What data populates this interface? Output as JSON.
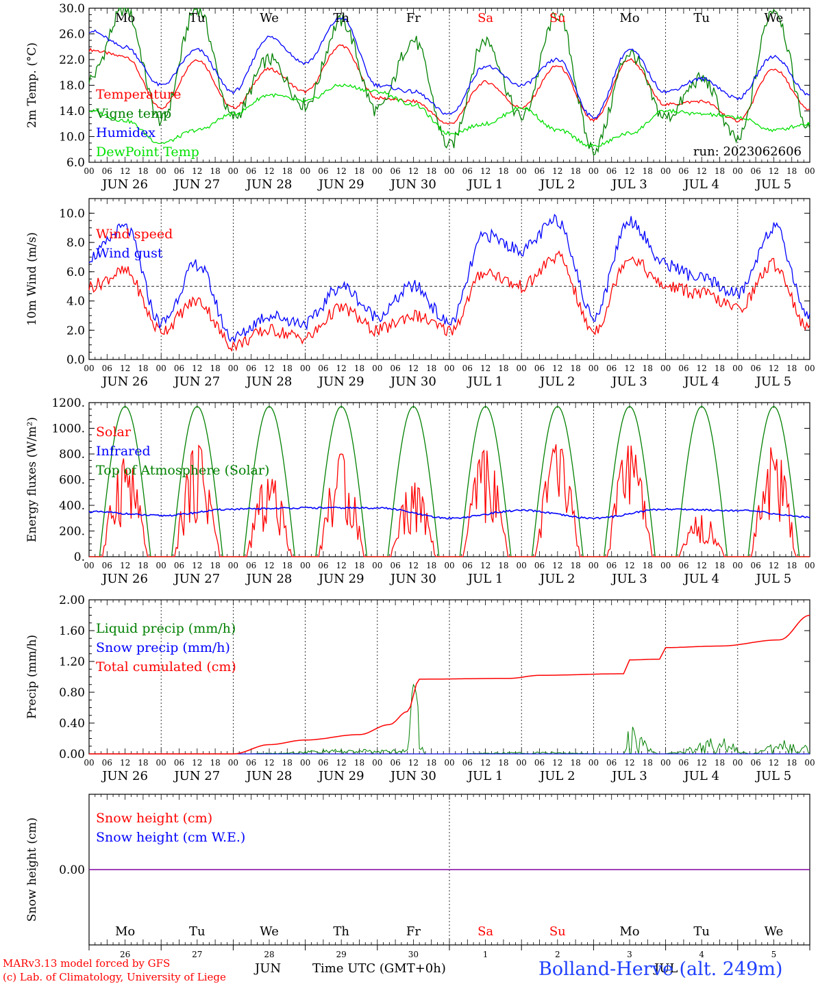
{
  "colors": {
    "red": "#ff0000",
    "green": "#008000",
    "lightgreen": "#00e000",
    "blue": "#0000ff",
    "purple": "#8000a0"
  },
  "footer": {
    "model": "MARv3.13 model forced by GFS",
    "copyright": "(c) Lab. of Climatology, University of Liege",
    "station": "Bolland-Herve (alt. 249m)",
    "xaxis_title": "Time UTC (GMT+0h)",
    "month_left": "JUN",
    "month_right": "JUL"
  },
  "chart_data": [
    {
      "type": "line",
      "ylabel": "2m Temp. (°C)",
      "ylim": [
        6,
        30
      ],
      "yticks": [
        "30.0",
        "26.0",
        "22.0",
        "18.0",
        "14.0",
        "10.0",
        "6.0"
      ],
      "annotation": "run: 2023062606",
      "day_labels": [
        "Mo",
        "Tu",
        "We",
        "Th",
        "Fr",
        "Sa",
        "Su",
        "Mo",
        "Tu",
        "We"
      ],
      "hour_ticks": [
        "00",
        "06",
        "12",
        "18"
      ],
      "date_labels": [
        "JUN 26",
        "JUN 27",
        "JUN 28",
        "JUN 29",
        "JUN 30",
        "JUL  1",
        "JUL  2",
        "JUL  3",
        "JUL  4",
        "JUL  5"
      ],
      "series": [
        {
          "name": "Temperature",
          "color": "#ff0000",
          "x_hours": [
            0,
            12,
            24,
            36,
            48,
            60,
            72,
            84,
            96,
            108,
            120,
            132,
            144,
            156,
            168,
            180,
            192,
            204,
            216,
            228,
            240
          ],
          "values": [
            23.5,
            22.5,
            14.5,
            22.0,
            14.5,
            20.5,
            17.0,
            24.2,
            16.0,
            15.5,
            12.0,
            18.5,
            14.5,
            21.0,
            12.5,
            22.0,
            15.0,
            15.5,
            12.5,
            20.5,
            14.2
          ]
        },
        {
          "name": "Vigne temp",
          "color": "#008000",
          "x_hours": [
            0,
            12,
            24,
            36,
            48,
            60,
            72,
            84,
            96,
            108,
            120,
            132,
            144,
            156,
            168,
            180,
            192,
            204,
            216,
            228,
            240
          ],
          "values": [
            19.0,
            30.0,
            12.5,
            30.0,
            13.0,
            22.0,
            15.0,
            28.0,
            14.0,
            25.0,
            8.5,
            25.0,
            13.0,
            29.0,
            8.0,
            23.0,
            13.0,
            19.0,
            9.5,
            30.0,
            11.0
          ]
        },
        {
          "name": "Humidex",
          "color": "#0000ff",
          "x_hours": [
            0,
            12,
            24,
            36,
            48,
            60,
            72,
            84,
            96,
            108,
            120,
            132,
            144,
            156,
            168,
            180,
            192,
            204,
            216,
            228,
            240
          ],
          "values": [
            26.5,
            24.0,
            18.0,
            23.5,
            17.0,
            25.5,
            21.5,
            28.5,
            18.0,
            17.0,
            13.5,
            21.0,
            18.0,
            22.0,
            13.0,
            23.5,
            17.0,
            19.0,
            16.0,
            22.5,
            16.5
          ]
        },
        {
          "name": "DewPoint Temp",
          "color": "#00e000",
          "x_hours": [
            0,
            12,
            24,
            36,
            48,
            60,
            72,
            84,
            96,
            108,
            120,
            132,
            144,
            156,
            168,
            180,
            192,
            204,
            216,
            228,
            240
          ],
          "values": [
            14.0,
            12.5,
            9.0,
            11.0,
            13.5,
            16.5,
            15.5,
            18.0,
            17.0,
            15.0,
            10.5,
            12.0,
            14.5,
            11.0,
            8.5,
            10.5,
            14.0,
            13.5,
            13.0,
            11.0,
            12.0
          ]
        }
      ]
    },
    {
      "type": "line",
      "ylabel": "10m Wind (m/s)",
      "ylim": [
        0,
        11
      ],
      "yticks": [
        "10.0",
        "8.0",
        "6.0",
        "4.0",
        "2.0",
        "0.0"
      ],
      "hline": 5,
      "date_labels": [
        "JUN 26",
        "JUN 27",
        "JUN 28",
        "JUN 29",
        "JUN 30",
        "JUL  1",
        "JUL  2",
        "JUL  3",
        "JUL  4",
        "JUL  5"
      ],
      "hour_ticks": [
        "00",
        "06",
        "12",
        "18"
      ],
      "series": [
        {
          "name": "Wind speed",
          "color": "#ff0000",
          "x_hours": [
            0,
            12,
            24,
            36,
            48,
            60,
            72,
            84,
            96,
            108,
            120,
            132,
            144,
            156,
            168,
            180,
            192,
            204,
            216,
            228,
            240
          ],
          "values": [
            5.0,
            6.0,
            2.0,
            4.0,
            1.0,
            2.0,
            1.5,
            3.5,
            2.0,
            3.0,
            2.0,
            6.0,
            5.0,
            7.0,
            2.0,
            7.0,
            5.0,
            4.5,
            3.5,
            6.5,
            2.0
          ]
        },
        {
          "name": "Wind gust",
          "color": "#0000ff",
          "x_hours": [
            0,
            12,
            24,
            36,
            48,
            60,
            72,
            84,
            96,
            108,
            120,
            132,
            144,
            156,
            168,
            180,
            192,
            204,
            216,
            228,
            240
          ],
          "values": [
            7.0,
            9.0,
            2.5,
            6.5,
            1.5,
            3.0,
            2.5,
            5.0,
            3.0,
            5.0,
            2.5,
            8.5,
            7.5,
            9.5,
            3.0,
            9.5,
            6.5,
            5.5,
            4.5,
            9.0,
            3.0
          ]
        }
      ]
    },
    {
      "type": "line",
      "ylabel": "Energy fluxes (W/m²)",
      "ylim": [
        0,
        1200
      ],
      "yticks": [
        "1200.",
        "1000.",
        "800.",
        "600.",
        "400.",
        "200.",
        "0."
      ],
      "date_labels": [
        "JUN 26",
        "JUN 27",
        "JUN 28",
        "JUN 29",
        "JUN 30",
        "JUL  1",
        "JUL  2",
        "JUL  3",
        "JUL  4",
        "JUL  5"
      ],
      "hour_ticks": [
        "00",
        "06",
        "12",
        "18"
      ],
      "series": [
        {
          "name": "Solar",
          "color": "#ff0000",
          "daily_peak": [
            800,
            870,
            650,
            800,
            580,
            830,
            880,
            870,
            340,
            870
          ]
        },
        {
          "name": "Infrared",
          "color": "#0000ff",
          "x_hours": [
            0,
            24,
            48,
            72,
            96,
            120,
            144,
            168,
            192,
            216,
            240
          ],
          "values": [
            350,
            320,
            370,
            380,
            380,
            300,
            360,
            300,
            370,
            360,
            310
          ]
        },
        {
          "name": "Top of Atmosphere (Solar)",
          "color": "#008000",
          "daily_peak": [
            1170,
            1170,
            1170,
            1170,
            1170,
            1170,
            1170,
            1170,
            1170,
            1170
          ]
        }
      ]
    },
    {
      "type": "line",
      "ylabel": "Precip (mm/h)",
      "ylim": [
        0,
        2
      ],
      "yticks": [
        "2.00",
        "1.60",
        "1.20",
        "0.80",
        "0.40",
        "0.00"
      ],
      "date_labels": [
        "JUN 26",
        "JUN 27",
        "JUN 28",
        "JUN 29",
        "JUN 30",
        "JUL  1",
        "JUL  2",
        "JUL  3",
        "JUL  4",
        "JUL  5"
      ],
      "hour_ticks": [
        "00",
        "06",
        "12",
        "18"
      ],
      "series": [
        {
          "name": "Liquid precip (mm/h)",
          "color": "#008000",
          "x_hours": [
            0,
            48,
            60,
            80,
            100,
            106,
            108,
            112,
            150,
            178,
            180,
            190,
            212,
            220,
            230,
            240
          ],
          "values": [
            0,
            0,
            0.01,
            0.05,
            0.05,
            0.05,
            0.9,
            0,
            0.02,
            0,
            0.3,
            0,
            0.2,
            0,
            0.15,
            0.1
          ]
        },
        {
          "name": "Snow precip (mm/h)",
          "color": "#0000ff",
          "x_hours": [
            0,
            240
          ],
          "values": [
            0,
            0
          ]
        },
        {
          "name": "Total cumulated (cm)",
          "color": "#ff0000",
          "x_hours": [
            0,
            48,
            60,
            72,
            90,
            100,
            106,
            110,
            140,
            150,
            178,
            180,
            190,
            192,
            210,
            230,
            240
          ],
          "values": [
            0,
            0,
            0.12,
            0.18,
            0.25,
            0.38,
            0.55,
            0.97,
            0.98,
            1.02,
            1.04,
            1.22,
            1.23,
            1.38,
            1.4,
            1.48,
            1.8
          ]
        }
      ]
    },
    {
      "type": "line",
      "ylabel": "Snow height (cm)",
      "ylim": [
        -1,
        1
      ],
      "yticks": [
        "0.00"
      ],
      "series": [
        {
          "name": "Snow height (cm)",
          "color": "#ff0000",
          "x_hours": [
            0,
            240
          ],
          "values": [
            0,
            0
          ]
        },
        {
          "name": "Snow height (cm W.E.)",
          "color": "#0000ff",
          "x_hours": [
            0,
            240
          ],
          "values": [
            0,
            0
          ]
        }
      ],
      "day_labels": [
        "Mo",
        "Tu",
        "We",
        "Th",
        "Fr",
        "Sa",
        "Su",
        "Mo",
        "Tu",
        "We"
      ],
      "day_numbers": [
        "26",
        "27",
        "28",
        "29",
        "30",
        "1",
        "2",
        "3",
        "4",
        "5"
      ]
    }
  ]
}
